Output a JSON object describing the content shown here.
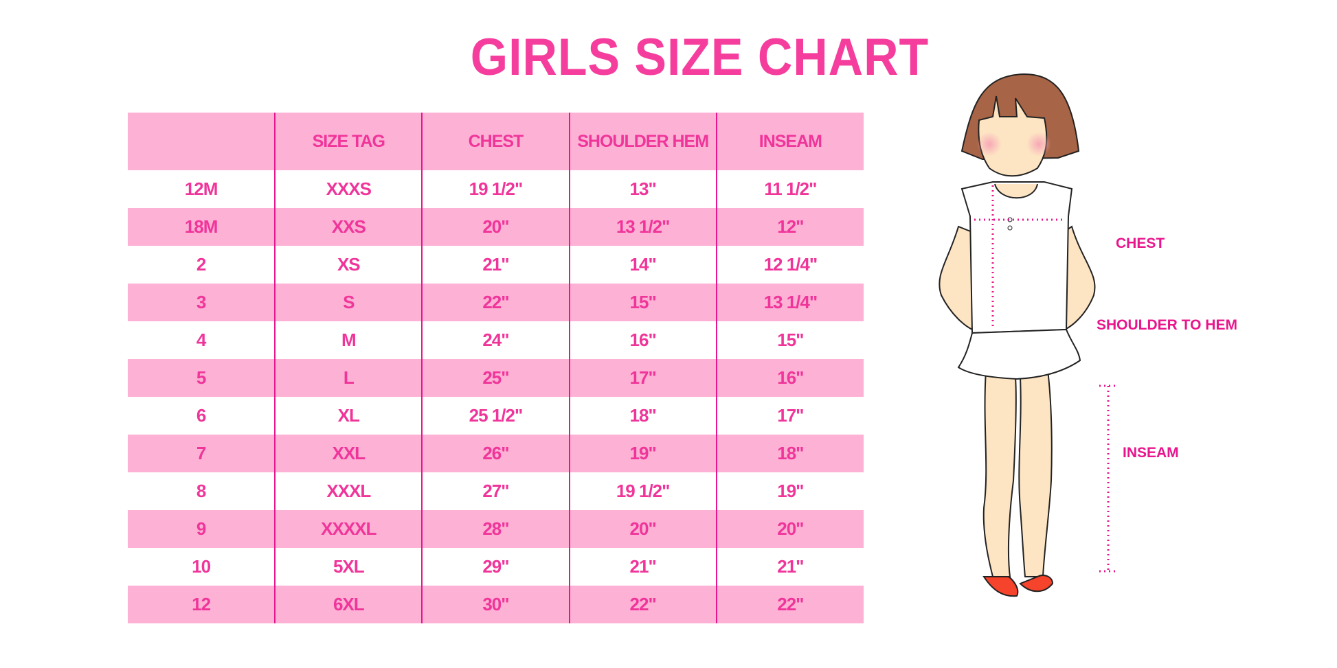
{
  "title": "GIRLS SIZE CHART",
  "table": {
    "headers": [
      "",
      "SIZE TAG",
      "CHEST",
      "SHOULDER HEM",
      "INSEAM"
    ],
    "rows": [
      [
        "12M",
        "XXXS",
        "19 1/2\"",
        "13\"",
        "11 1/2\""
      ],
      [
        "18M",
        "XXS",
        "20\"",
        "13 1/2\"",
        "12\""
      ],
      [
        "2",
        "XS",
        "21\"",
        "14\"",
        "12 1/4\""
      ],
      [
        "3",
        "S",
        "22\"",
        "15\"",
        "13 1/4\""
      ],
      [
        "4",
        "M",
        "24\"",
        "16\"",
        "15\""
      ],
      [
        "5",
        "L",
        "25\"",
        "17\"",
        "16\""
      ],
      [
        "6",
        "XL",
        "25 1/2\"",
        "18\"",
        "17\""
      ],
      [
        "7",
        "XXL",
        "26\"",
        "19\"",
        "18\""
      ],
      [
        "8",
        "XXXL",
        "27\"",
        "19 1/2\"",
        "19\""
      ],
      [
        "9",
        "XXXXL",
        "28\"",
        "20\"",
        "20\""
      ],
      [
        "10",
        "5XL",
        "29\"",
        "21\"",
        "21\""
      ],
      [
        "12",
        "6XL",
        "30\"",
        "22\"",
        "22\""
      ]
    ]
  },
  "figure": {
    "labels": {
      "chest": "CHEST",
      "shoulder_to_hem": "SHOULDER TO HEM",
      "inseam": "INSEAM"
    }
  },
  "colors": {
    "accent": "#f0359a",
    "row_pink": "#fdb1d5",
    "divider": "#e8168c",
    "hair": "#a86446",
    "skin": "#fde5c3",
    "shoes": "#f5432c"
  }
}
